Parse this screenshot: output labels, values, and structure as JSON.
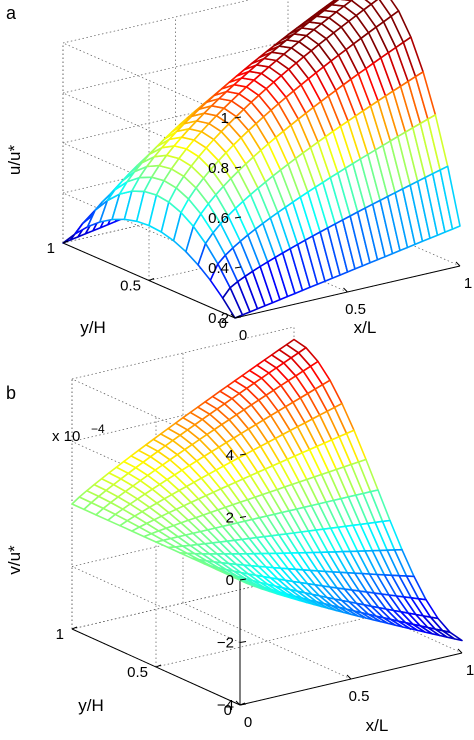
{
  "figure": {
    "panels": [
      "a",
      "b"
    ]
  },
  "chart_data": [
    {
      "panel_label": "a",
      "type": "surface",
      "title": "",
      "xlabel": "x/L",
      "ylabel": "y/H",
      "zlabel": "u/u*",
      "xlim": [
        0,
        1
      ],
      "ylim": [
        0,
        1
      ],
      "zlim": [
        0.2,
        1
      ],
      "x_ticks": [
        "0",
        "0.5",
        "1"
      ],
      "y_ticks": [
        "0",
        "0.5",
        "1"
      ],
      "z_ticks": [
        "0.2",
        "0.4",
        "0.6",
        "0.8",
        "1"
      ],
      "z_tick_values": [
        0.2,
        0.4,
        0.6,
        0.8,
        1.0
      ],
      "grid": true,
      "colormap": "jet",
      "samples": {
        "x": [
          0,
          0.25,
          0.5,
          0.75,
          1
        ],
        "y": [
          0,
          0.25,
          0.5,
          0.75,
          1
        ],
        "z_at_y_mid": [
          0.42,
          0.62,
          0.78,
          0.9,
          0.98
        ],
        "z_at_y_edges": [
          0.2,
          0.24,
          0.28,
          0.32,
          0.36
        ]
      }
    },
    {
      "panel_label": "b",
      "type": "surface",
      "title": "",
      "xlabel": "x/L",
      "ylabel": "y/H",
      "zlabel": "v/u*",
      "z_scale_label": "x 10",
      "z_scale_exponent": "−4",
      "xlim": [
        0,
        1
      ],
      "ylim": [
        0,
        1
      ],
      "zlim": [
        -4,
        4
      ],
      "x_ticks": [
        "0",
        "0.5",
        "1"
      ],
      "y_ticks": [
        "0",
        "0.5",
        "1"
      ],
      "z_ticks": [
        "−4",
        "−2",
        "0",
        "2",
        "4"
      ],
      "z_tick_values": [
        -4,
        -2,
        0,
        2,
        4
      ],
      "grid": true,
      "colormap": "jet",
      "samples": {
        "x": [
          0,
          0.25,
          0.5,
          0.75,
          1
        ],
        "y": [
          0,
          0.25,
          0.5,
          0.75,
          1
        ],
        "z_at_y1": [
          0,
          0.8,
          1.6,
          2.4,
          3.4
        ],
        "z_at_y0": [
          0,
          -0.8,
          -1.6,
          -2.4,
          -3.4
        ]
      }
    }
  ]
}
